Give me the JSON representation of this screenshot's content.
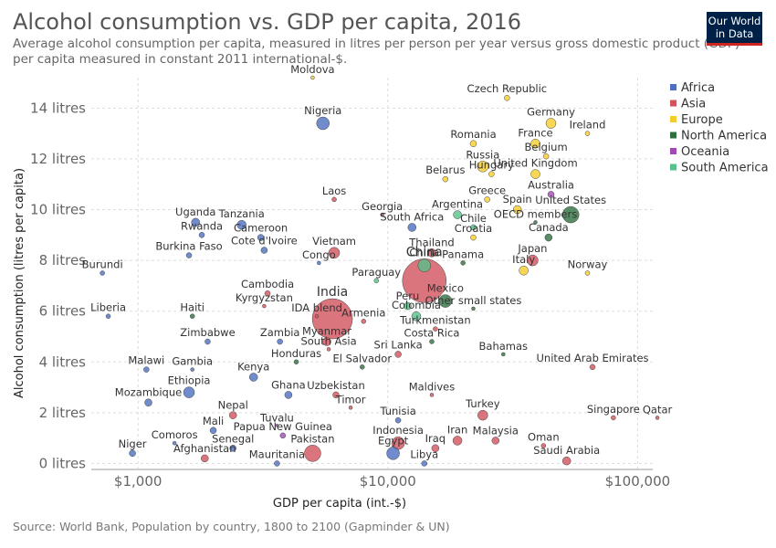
{
  "header": {
    "title": "Alcohol consumption vs. GDP per capita, 2016",
    "subtitle": "Average alcohol consumption per capita, measured in litres per person per year versus gross domestic product (GDP) per capita measured in constant 2011 international-$.",
    "logo": "Our World in Data",
    "source": "Source: World Bank, Population by country, 1800 to 2100 (Gapminder & UN)"
  },
  "colors": {
    "Africa": "#4c6fc1",
    "Asia": "#d2535d",
    "Europe": "#f5cd2b",
    "North America": "#2e6f3e",
    "Oceania": "#a14ab3",
    "South America": "#57c18a"
  },
  "chart_data": {
    "type": "scatter",
    "title": "Alcohol consumption vs. GDP per capita, 2016",
    "xlabel": "GDP per capita (int.-$)",
    "ylabel": "Alcohol consumption (litres per capita)",
    "xscale": "log",
    "xlim": [
      650,
      115000
    ],
    "ylim": [
      -0.2,
      15.2
    ],
    "xticks": [
      {
        "v": 1000,
        "label": "$1,000"
      },
      {
        "v": 10000,
        "label": "$10,000"
      },
      {
        "v": 100000,
        "label": "$100,000"
      }
    ],
    "yticks": [
      {
        "v": 0,
        "label": "0 litres"
      },
      {
        "v": 2,
        "label": "2 litres"
      },
      {
        "v": 4,
        "label": "4 litres"
      },
      {
        "v": 6,
        "label": "6 litres"
      },
      {
        "v": 8,
        "label": "8 litres"
      },
      {
        "v": 10,
        "label": "10 litres"
      },
      {
        "v": 12,
        "label": "12 litres"
      },
      {
        "v": 14,
        "label": "14 litres"
      }
    ],
    "legend": {
      "position": "right",
      "entries": [
        "Africa",
        "Asia",
        "Europe",
        "North America",
        "Oceania",
        "South America"
      ]
    },
    "points": [
      {
        "label": "Moldova",
        "x": 5000,
        "y": 15.2,
        "region": "Europe",
        "r": 2,
        "big": false
      },
      {
        "label": "Czech Republic",
        "x": 30000,
        "y": 14.4,
        "region": "Europe",
        "r": 3,
        "big": false
      },
      {
        "label": "Nigeria",
        "x": 5500,
        "y": 13.4,
        "region": "Africa",
        "r": 7,
        "big": false
      },
      {
        "label": "Germany",
        "x": 45000,
        "y": 13.4,
        "region": "Europe",
        "r": 5.5,
        "big": false
      },
      {
        "label": "Ireland",
        "x": 63000,
        "y": 13.0,
        "region": "Europe",
        "r": 2.5,
        "big": false
      },
      {
        "label": "Romania",
        "x": 22000,
        "y": 12.6,
        "region": "Europe",
        "r": 3.5,
        "big": false
      },
      {
        "label": "France",
        "x": 39000,
        "y": 12.6,
        "region": "Europe",
        "r": 5,
        "big": false
      },
      {
        "label": "Belgium",
        "x": 43000,
        "y": 12.1,
        "region": "Europe",
        "r": 3,
        "big": false
      },
      {
        "label": "Russia",
        "x": 24000,
        "y": 11.7,
        "region": "Europe",
        "r": 6,
        "big": false
      },
      {
        "label": "Hungary",
        "x": 26000,
        "y": 11.4,
        "region": "Europe",
        "r": 3,
        "big": false
      },
      {
        "label": "United Kingdom",
        "x": 39000,
        "y": 11.4,
        "region": "Europe",
        "r": 5,
        "big": false
      },
      {
        "label": "Belarus",
        "x": 17000,
        "y": 11.2,
        "region": "Europe",
        "r": 3,
        "big": false
      },
      {
        "label": "Australia",
        "x": 45000,
        "y": 10.6,
        "region": "Oceania",
        "r": 3.5,
        "big": false
      },
      {
        "label": "Greece",
        "x": 25000,
        "y": 10.4,
        "region": "Europe",
        "r": 3,
        "big": false
      },
      {
        "label": "Laos",
        "x": 6100,
        "y": 10.4,
        "region": "Asia",
        "r": 2.5,
        "big": false
      },
      {
        "label": "Spain",
        "x": 33000,
        "y": 10.0,
        "region": "Europe",
        "r": 4.5,
        "big": false
      },
      {
        "label": "United States",
        "x": 54000,
        "y": 9.8,
        "region": "North America",
        "r": 9,
        "big": false
      },
      {
        "label": "Argentina",
        "x": 19000,
        "y": 9.8,
        "region": "South America",
        "r": 4.5,
        "big": false
      },
      {
        "label": "Georgia",
        "x": 9500,
        "y": 9.8,
        "region": "Asia",
        "r": 2,
        "big": false
      },
      {
        "label": "Uganda",
        "x": 1700,
        "y": 9.5,
        "region": "Africa",
        "r": 4.5,
        "big": false
      },
      {
        "label": "Tanzania",
        "x": 2600,
        "y": 9.4,
        "region": "Africa",
        "r": 5,
        "big": false
      },
      {
        "label": "OECD members",
        "x": 39000,
        "y": 9.5,
        "region": "North America",
        "r": 2,
        "big": false
      },
      {
        "label": "South Africa",
        "x": 12500,
        "y": 9.3,
        "region": "Africa",
        "r": 4.5,
        "big": false
      },
      {
        "label": "Chile",
        "x": 22000,
        "y": 9.3,
        "region": "South America",
        "r": 3,
        "big": false
      },
      {
        "label": "Rwanda",
        "x": 1800,
        "y": 9.0,
        "region": "Africa",
        "r": 3,
        "big": false
      },
      {
        "label": "Croatia",
        "x": 22000,
        "y": 8.9,
        "region": "Europe",
        "r": 3,
        "big": false
      },
      {
        "label": "Canada",
        "x": 44000,
        "y": 8.9,
        "region": "North America",
        "r": 4,
        "big": false
      },
      {
        "label": "Cameroon",
        "x": 3100,
        "y": 8.9,
        "region": "Africa",
        "r": 3.5,
        "big": false
      },
      {
        "label": "Cote d'Ivoire",
        "x": 3200,
        "y": 8.4,
        "region": "Africa",
        "r": 3.5,
        "big": false
      },
      {
        "label": "Vietnam",
        "x": 6100,
        "y": 8.3,
        "region": "Asia",
        "r": 6,
        "big": false
      },
      {
        "label": "Thailand",
        "x": 15000,
        "y": 8.3,
        "region": "Asia",
        "r": 4.5,
        "big": false
      },
      {
        "label": "Japan",
        "x": 38000,
        "y": 8.0,
        "region": "Asia",
        "r": 6,
        "big": false
      },
      {
        "label": "Burkina Faso",
        "x": 1600,
        "y": 8.2,
        "region": "Africa",
        "r": 3,
        "big": false
      },
      {
        "label": "Panama",
        "x": 20000,
        "y": 7.9,
        "region": "North America",
        "r": 2.5,
        "big": false
      },
      {
        "label": "Congo",
        "x": 5300,
        "y": 7.9,
        "region": "Africa",
        "r": 2,
        "big": false
      },
      {
        "label": "China",
        "x": 14000,
        "y": 7.8,
        "region": "South America",
        "r": 7,
        "big": true
      },
      {
        "label": "Italy",
        "x": 35000,
        "y": 7.6,
        "region": "Europe",
        "r": 5,
        "big": false
      },
      {
        "label": "Norway",
        "x": 63000,
        "y": 7.5,
        "region": "Europe",
        "r": 2.5,
        "big": false
      },
      {
        "label": "Burundi",
        "x": 720,
        "y": 7.5,
        "region": "Africa",
        "r": 2.5,
        "big": false
      },
      {
        "label": "Paraguay",
        "x": 9000,
        "y": 7.2,
        "region": "South America",
        "r": 2.5,
        "big": false
      },
      {
        "label": "China",
        "x": 14000,
        "y": 7.2,
        "region": "Asia",
        "r": 24,
        "big": false
      },
      {
        "label": "Cambodia",
        "x": 3300,
        "y": 6.7,
        "region": "Asia",
        "r": 3,
        "big": false
      },
      {
        "label": "Mexico",
        "x": 17000,
        "y": 6.4,
        "region": "North America",
        "r": 7,
        "big": false
      },
      {
        "label": "Peru",
        "x": 12000,
        "y": 6.2,
        "region": "South America",
        "r": 4,
        "big": false
      },
      {
        "label": "Kyrgyzstan",
        "x": 3200,
        "y": 6.2,
        "region": "Asia",
        "r": 2,
        "big": false
      },
      {
        "label": "Other small states",
        "x": 22000,
        "y": 6.1,
        "region": "North America",
        "r": 2,
        "big": false
      },
      {
        "label": "India",
        "x": 6000,
        "y": 5.7,
        "region": "Asia",
        "r": 22,
        "big": true
      },
      {
        "label": "IDA blend",
        "x": 5200,
        "y": 5.8,
        "region": "Asia",
        "r": 2,
        "big": false
      },
      {
        "label": "Colombia",
        "x": 13000,
        "y": 5.8,
        "region": "South America",
        "r": 5,
        "big": false
      },
      {
        "label": "Liberia",
        "x": 760,
        "y": 5.8,
        "region": "Africa",
        "r": 2.5,
        "big": false
      },
      {
        "label": "Haiti",
        "x": 1650,
        "y": 5.8,
        "region": "North America",
        "r": 2.5,
        "big": false
      },
      {
        "label": "Armenia",
        "x": 8000,
        "y": 5.6,
        "region": "Asia",
        "r": 2.5,
        "big": false
      },
      {
        "label": "Turkmenistan",
        "x": 15500,
        "y": 5.3,
        "region": "Asia",
        "r": 2.5,
        "big": false
      },
      {
        "label": "Zimbabwe",
        "x": 1900,
        "y": 4.8,
        "region": "Africa",
        "r": 3,
        "big": false
      },
      {
        "label": "Zambia",
        "x": 3700,
        "y": 4.8,
        "region": "Africa",
        "r": 3,
        "big": false
      },
      {
        "label": "Myanmar",
        "x": 5700,
        "y": 4.8,
        "region": "Asia",
        "r": 4.5,
        "big": false
      },
      {
        "label": "Costa Rica",
        "x": 15000,
        "y": 4.8,
        "region": "North America",
        "r": 2.5,
        "big": false
      },
      {
        "label": "South Asia",
        "x": 5800,
        "y": 4.5,
        "region": "Asia",
        "r": 2,
        "big": false
      },
      {
        "label": "Sri Lanka",
        "x": 11000,
        "y": 4.3,
        "region": "Asia",
        "r": 3.5,
        "big": false
      },
      {
        "label": "Bahamas",
        "x": 29000,
        "y": 4.3,
        "region": "North America",
        "r": 2,
        "big": false
      },
      {
        "label": "Honduras",
        "x": 4300,
        "y": 4.0,
        "region": "North America",
        "r": 2.5,
        "big": false
      },
      {
        "label": "El Salvador",
        "x": 7900,
        "y": 3.8,
        "region": "North America",
        "r": 2.5,
        "big": false
      },
      {
        "label": "United Arab Emirates",
        "x": 66000,
        "y": 3.8,
        "region": "Asia",
        "r": 3,
        "big": false
      },
      {
        "label": "Malawi",
        "x": 1080,
        "y": 3.7,
        "region": "Africa",
        "r": 3,
        "big": false
      },
      {
        "label": "Gambia",
        "x": 1650,
        "y": 3.7,
        "region": "Africa",
        "r": 2,
        "big": false
      },
      {
        "label": "Kenya",
        "x": 2900,
        "y": 3.4,
        "region": "Africa",
        "r": 4.5,
        "big": false
      },
      {
        "label": "Ethiopia",
        "x": 1600,
        "y": 2.8,
        "region": "Africa",
        "r": 6,
        "big": false
      },
      {
        "label": "Ghana",
        "x": 4000,
        "y": 2.7,
        "region": "Africa",
        "r": 4,
        "big": false
      },
      {
        "label": "Uzbekistan",
        "x": 6200,
        "y": 2.7,
        "region": "Asia",
        "r": 3.5,
        "big": false
      },
      {
        "label": "Maldives",
        "x": 15000,
        "y": 2.7,
        "region": "Asia",
        "r": 2,
        "big": false
      },
      {
        "label": "Mozambique",
        "x": 1100,
        "y": 2.4,
        "region": "Africa",
        "r": 4,
        "big": false
      },
      {
        "label": "Timor",
        "x": 7100,
        "y": 2.2,
        "region": "Asia",
        "r": 2,
        "big": false
      },
      {
        "label": "Nepal",
        "x": 2400,
        "y": 1.9,
        "region": "Asia",
        "r": 4,
        "big": false
      },
      {
        "label": "Tunisia",
        "x": 11000,
        "y": 1.7,
        "region": "Africa",
        "r": 3,
        "big": false
      },
      {
        "label": "Turkey",
        "x": 24000,
        "y": 1.9,
        "region": "Asia",
        "r": 5.5,
        "big": false
      },
      {
        "label": "Singapore",
        "x": 80000,
        "y": 1.8,
        "region": "Asia",
        "r": 2.5,
        "big": false
      },
      {
        "label": "Qatar",
        "x": 120000,
        "y": 1.8,
        "region": "Asia",
        "r": 2,
        "big": false
      },
      {
        "label": "Tuvalu",
        "x": 3600,
        "y": 1.5,
        "region": "Oceania",
        "r": 1.5,
        "big": false
      },
      {
        "label": "Mali",
        "x": 2000,
        "y": 1.3,
        "region": "Africa",
        "r": 3.5,
        "big": false
      },
      {
        "label": "Papua New Guinea",
        "x": 3800,
        "y": 1.1,
        "region": "Oceania",
        "r": 3,
        "big": false
      },
      {
        "label": "Comoros",
        "x": 1400,
        "y": 0.8,
        "region": "Africa",
        "r": 2,
        "big": false
      },
      {
        "label": "Iran",
        "x": 19000,
        "y": 0.9,
        "region": "Asia",
        "r": 5,
        "big": false
      },
      {
        "label": "Malaysia",
        "x": 27000,
        "y": 0.9,
        "region": "Asia",
        "r": 4,
        "big": false
      },
      {
        "label": "Oman",
        "x": 42000,
        "y": 0.7,
        "region": "Asia",
        "r": 2.5,
        "big": false
      },
      {
        "label": "Indonesia",
        "x": 11000,
        "y": 0.8,
        "region": "Asia",
        "r": 7,
        "big": false
      },
      {
        "label": "Senegal",
        "x": 2400,
        "y": 0.6,
        "region": "Africa",
        "r": 3.5,
        "big": false
      },
      {
        "label": "Niger",
        "x": 950,
        "y": 0.4,
        "region": "Africa",
        "r": 3.5,
        "big": false
      },
      {
        "label": "Pakistan",
        "x": 5000,
        "y": 0.4,
        "region": "Asia",
        "r": 9,
        "big": false
      },
      {
        "label": "Egypt",
        "x": 10500,
        "y": 0.4,
        "region": "Africa",
        "r": 7,
        "big": false
      },
      {
        "label": "Iraq",
        "x": 15500,
        "y": 0.6,
        "region": "Asia",
        "r": 4,
        "big": false
      },
      {
        "label": "Afghanistan",
        "x": 1850,
        "y": 0.2,
        "region": "Asia",
        "r": 4,
        "big": false
      },
      {
        "label": "Mauritania",
        "x": 3600,
        "y": 0.0,
        "region": "Africa",
        "r": 3,
        "big": false
      },
      {
        "label": "Saudi Arabia",
        "x": 52000,
        "y": 0.1,
        "region": "Asia",
        "r": 4.5,
        "big": false
      },
      {
        "label": "Libya",
        "x": 14000,
        "y": 0.0,
        "region": "Africa",
        "r": 3,
        "big": false
      }
    ]
  }
}
